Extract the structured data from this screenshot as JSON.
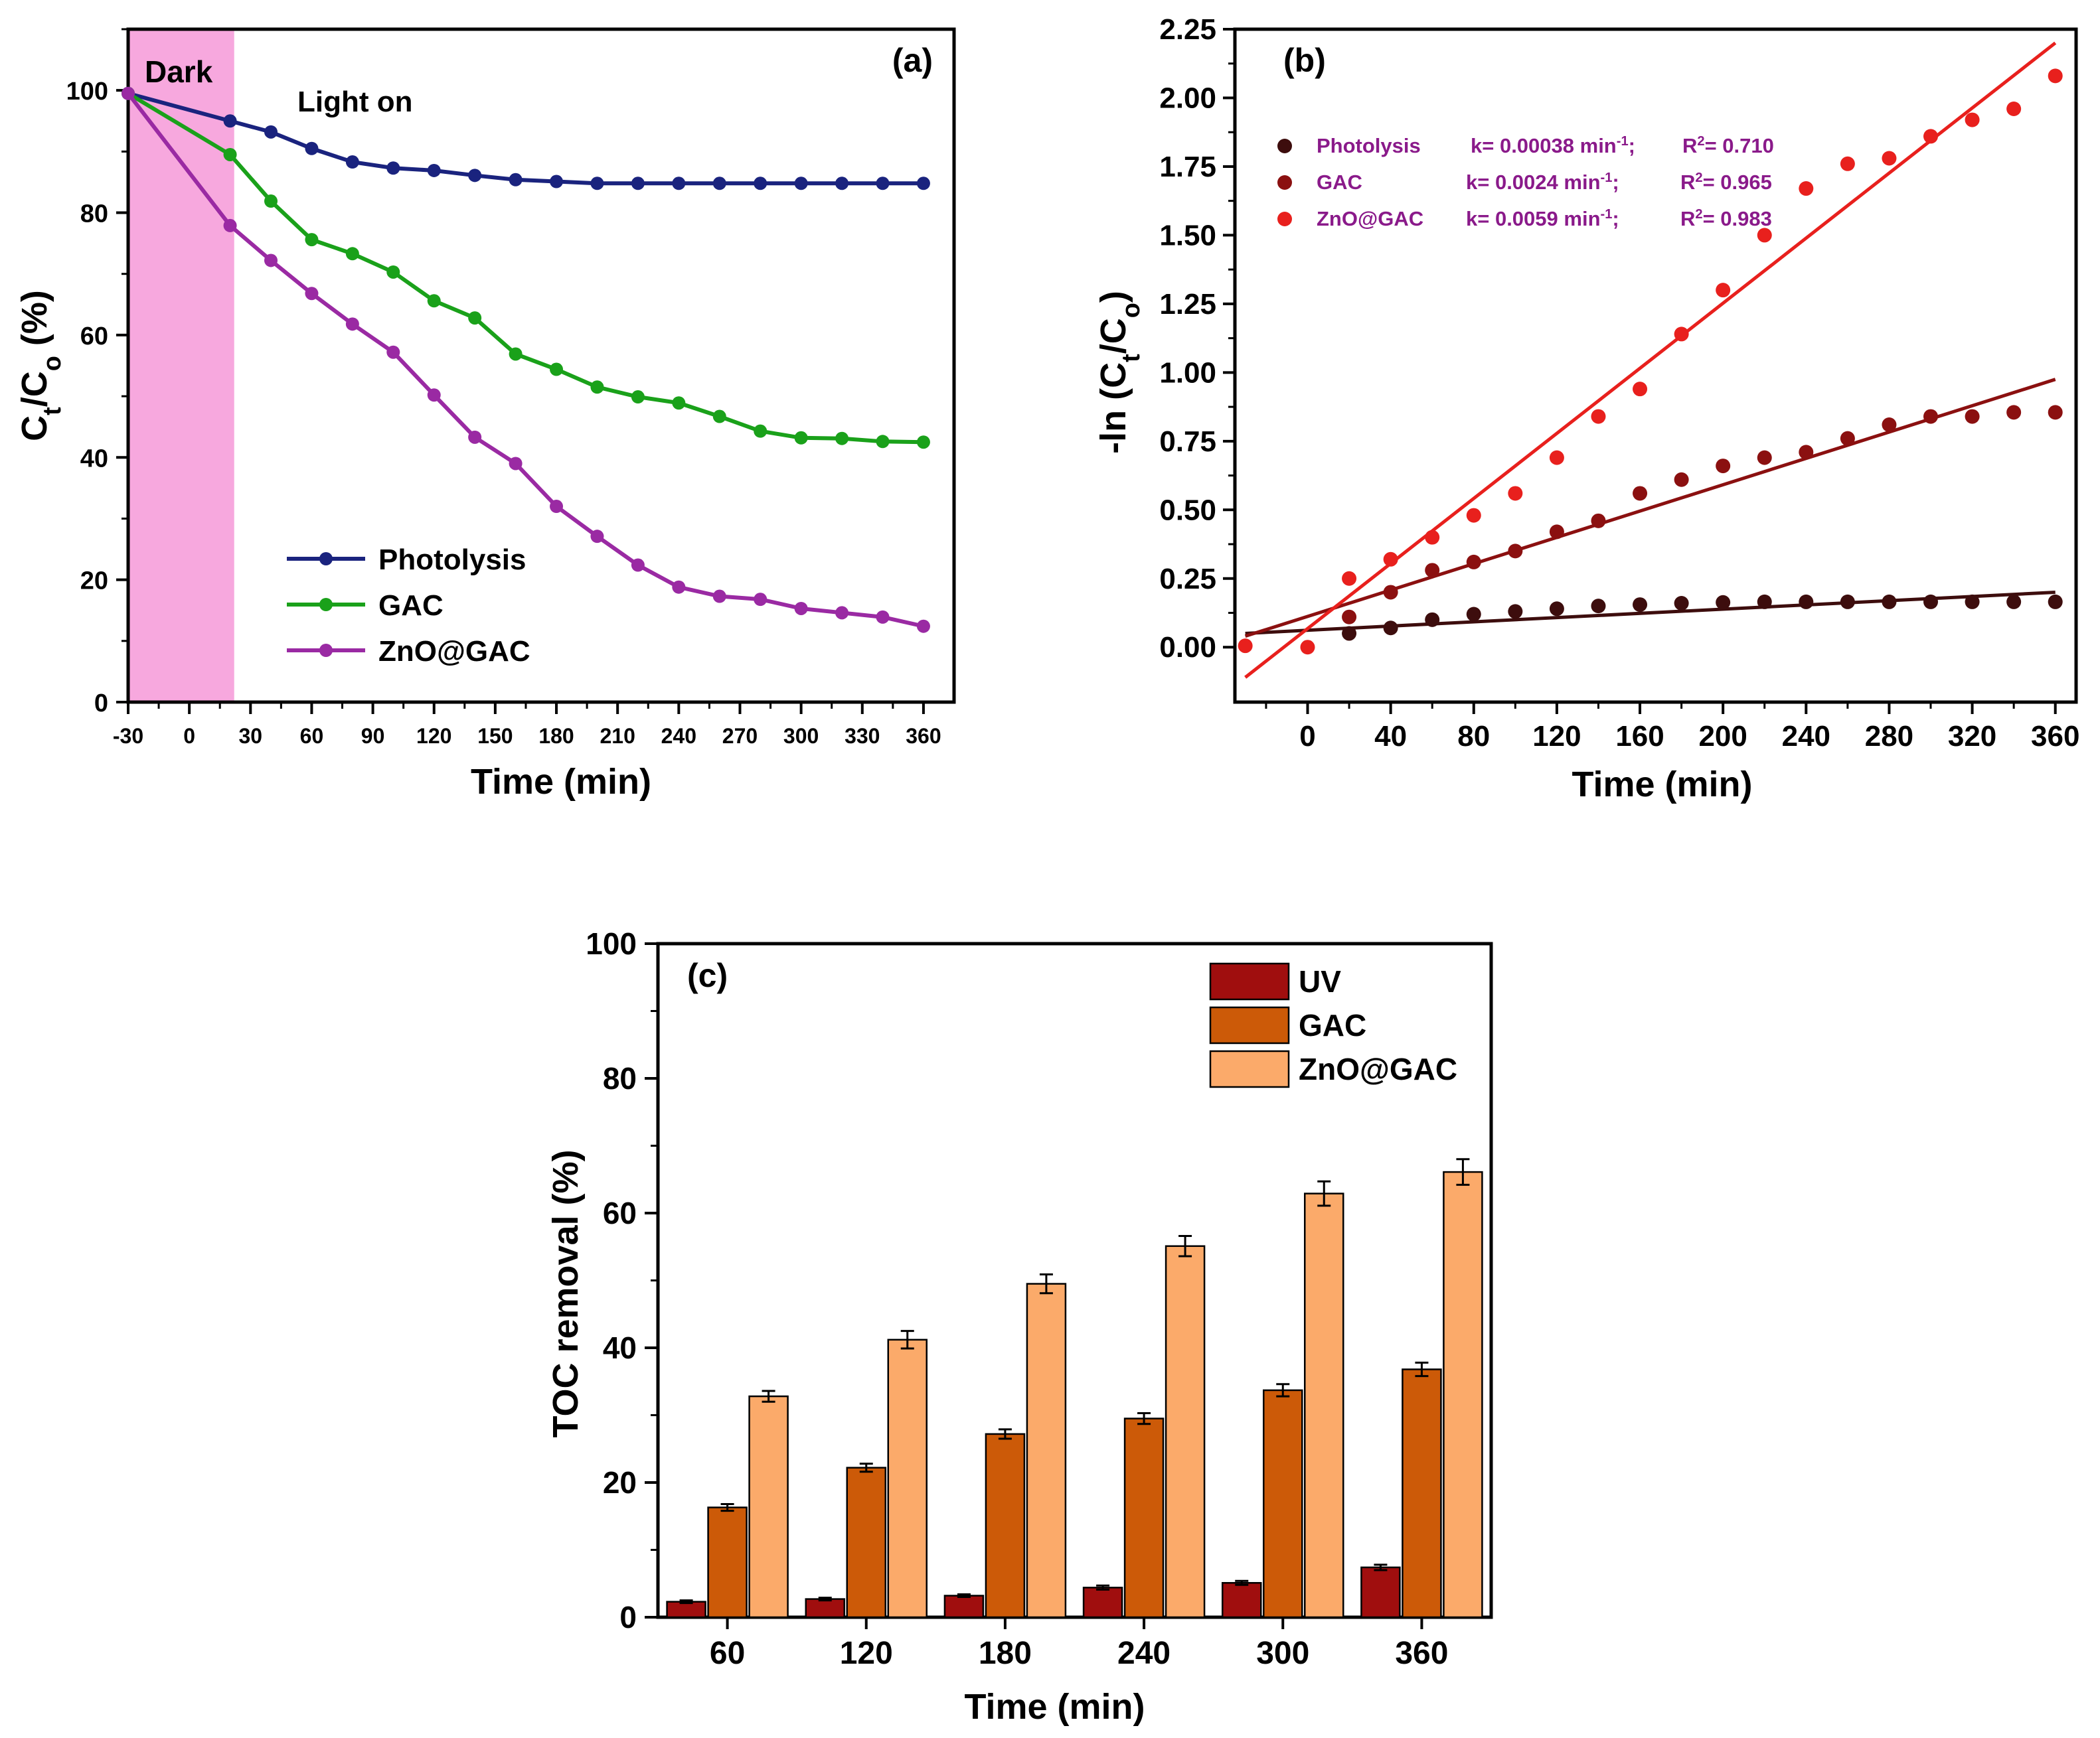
{
  "chart_data": [
    {
      "id": "a",
      "type": "line",
      "panel_label": "(a)",
      "xlabel": "Time (min)",
      "ylabel": {
        "main": "C",
        "sub1": "t",
        "mid": "/C",
        "sub2": "o",
        "tail": " (%)"
      },
      "xlim": [
        -30,
        375
      ],
      "ylim": [
        0,
        110
      ],
      "xticks": [
        -30,
        0,
        30,
        60,
        90,
        120,
        150,
        180,
        210,
        240,
        270,
        300,
        330,
        360
      ],
      "yticks": [
        0,
        20,
        40,
        60,
        80,
        100
      ],
      "dark_region": {
        "x_start": -30,
        "x_end": 22,
        "label": "Dark",
        "color": "#f7a8de"
      },
      "light_label": "Light on",
      "x": [
        -30,
        20,
        40,
        60,
        80,
        100,
        120,
        140,
        160,
        180,
        200,
        220,
        240,
        260,
        280,
        300,
        320,
        340,
        360
      ],
      "series": [
        {
          "name": "Photolysis",
          "color": "#1a237e",
          "values": [
            99.5,
            95,
            93.2,
            90.5,
            88.3,
            87.3,
            86.9,
            86.1,
            85.4,
            85.1,
            84.8,
            84.8,
            84.8,
            84.8,
            84.8,
            84.8,
            84.8,
            84.8,
            84.8
          ]
        },
        {
          "name": "GAC",
          "color": "#1aa11a",
          "values": [
            99.5,
            89.5,
            81.9,
            75.6,
            73.3,
            70.3,
            65.6,
            62.8,
            56.9,
            54.4,
            51.5,
            49.9,
            48.9,
            46.7,
            44.3,
            43.2,
            43.1,
            42.6,
            42.5
          ]
        },
        {
          "name": "ZnO@GAC",
          "color": "#9a2aa3",
          "values": [
            99.5,
            77.9,
            72.2,
            66.8,
            61.8,
            57.2,
            50.2,
            43.3,
            39.0,
            32.0,
            27.1,
            22.4,
            18.8,
            17.3,
            16.8,
            15.3,
            14.6,
            13.9,
            12.4
          ]
        }
      ]
    },
    {
      "id": "b",
      "type": "scatter",
      "panel_label": "(b)",
      "xlabel": "Time (min)",
      "ylabel": {
        "main": "-ln (C",
        "sub1": "t",
        "mid": "/C",
        "sub2": "o",
        "tail": ")"
      },
      "xlim": [
        -35,
        370
      ],
      "ylim": [
        -0.2,
        2.25
      ],
      "xticks": [
        0,
        40,
        80,
        120,
        160,
        200,
        240,
        280,
        320,
        360
      ],
      "yticks": [
        0.0,
        0.25,
        0.5,
        0.75,
        1.0,
        1.25,
        1.5,
        1.75,
        2.0,
        2.25
      ],
      "ytick_labels": [
        "0.00",
        "0.25",
        "0.50",
        "0.75",
        "1.00",
        "1.25",
        "1.50",
        "1.75",
        "2.00",
        "2.25"
      ],
      "series": [
        {
          "name": "Photolysis",
          "color": "#3d0d0d",
          "k_label": "k= 0.00038 min",
          "k_sup": "-1",
          "k_sep": ";",
          "r2_prefix": "R",
          "r2_sup": "2",
          "r2_value": "= 0.710",
          "x": [
            20,
            40,
            60,
            80,
            100,
            120,
            140,
            160,
            180,
            200,
            220,
            240,
            260,
            280,
            300,
            320,
            340,
            360
          ],
          "values": [
            0.05,
            0.07,
            0.1,
            0.12,
            0.13,
            0.14,
            0.15,
            0.155,
            0.16,
            0.163,
            0.165,
            0.165,
            0.165,
            0.165,
            0.165,
            0.165,
            0.165,
            0.165
          ],
          "fit": {
            "x": [
              -30,
              360
            ],
            "y": [
              0.05,
              0.2
            ]
          }
        },
        {
          "name": "GAC",
          "color": "#8b1010",
          "k_label": "k= 0.0024 min",
          "k_sup": "-1",
          "k_sep": ";",
          "r2_prefix": "R",
          "r2_sup": "2",
          "r2_value": "= 0.965",
          "x": [
            20,
            40,
            60,
            80,
            100,
            120,
            140,
            160,
            180,
            200,
            220,
            240,
            260,
            280,
            300,
            320,
            340,
            360
          ],
          "values": [
            0.11,
            0.2,
            0.28,
            0.31,
            0.35,
            0.42,
            0.46,
            0.56,
            0.61,
            0.66,
            0.69,
            0.71,
            0.76,
            0.81,
            0.84,
            0.84,
            0.855,
            0.855
          ],
          "fit": {
            "x": [
              -30,
              360
            ],
            "y": [
              0.04,
              0.975
            ]
          }
        },
        {
          "name": "ZnO@GAC",
          "color": "#e8201d",
          "k_label": "k= 0.0059 min",
          "k_sup": "-1",
          "k_sep": ";",
          "r2_prefix": "R",
          "r2_sup": "2",
          "r2_value": "= 0.983",
          "x": [
            -30,
            0,
            20,
            40,
            60,
            80,
            100,
            120,
            140,
            160,
            180,
            200,
            220,
            240,
            260,
            280,
            300,
            320,
            340,
            360
          ],
          "values": [
            0.005,
            0.0,
            0.25,
            0.32,
            0.4,
            0.48,
            0.56,
            0.69,
            0.84,
            0.94,
            1.14,
            1.3,
            1.5,
            1.67,
            1.76,
            1.78,
            1.86,
            1.92,
            1.96,
            2.08
          ],
          "fit": {
            "x": [
              -30,
              360
            ],
            "y": [
              -0.11,
              2.2
            ]
          }
        }
      ]
    },
    {
      "id": "c",
      "type": "bar",
      "panel_label": "(c)",
      "xlabel": "Time (min)",
      "ylabel": "TOC removal (%)",
      "ylim": [
        0,
        100
      ],
      "yticks": [
        0,
        20,
        40,
        60,
        80,
        100
      ],
      "categories": [
        "60",
        "120",
        "180",
        "240",
        "300",
        "360"
      ],
      "series": [
        {
          "name": "UV",
          "color": "#a00e0e",
          "values": [
            2.3,
            2.7,
            3.2,
            4.4,
            5.1,
            7.4
          ],
          "errors": [
            0.2,
            0.2,
            0.2,
            0.3,
            0.3,
            0.4
          ]
        },
        {
          "name": "GAC",
          "color": "#cc5a08",
          "values": [
            16.3,
            22.2,
            27.2,
            29.5,
            33.7,
            36.8
          ],
          "errors": [
            0.5,
            0.6,
            0.7,
            0.8,
            0.9,
            1.0
          ]
        },
        {
          "name": "ZnO@GAC",
          "color": "#fbaa6a",
          "values": [
            32.8,
            41.2,
            49.5,
            55.1,
            62.9,
            66.1
          ],
          "errors": [
            0.8,
            1.3,
            1.4,
            1.5,
            1.8,
            1.9
          ]
        }
      ]
    }
  ]
}
